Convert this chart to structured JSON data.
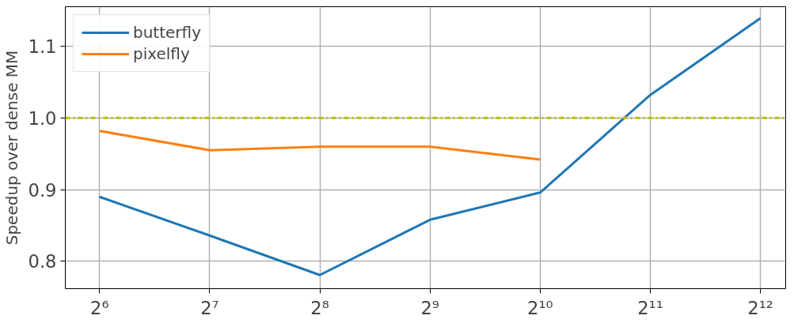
{
  "chart_data": {
    "type": "line",
    "ylabel": "Speedup over dense MM",
    "log": "x",
    "x": [
      64,
      128,
      256,
      512,
      1024,
      2048,
      4096
    ],
    "series": [
      {
        "name": "butterfly",
        "color": "#1f77b4",
        "values": [
          0.89,
          0.836,
          0.781,
          0.858,
          0.896,
          1.032,
          1.139
        ]
      },
      {
        "name": "pixelfly",
        "color": "#ff7f0e",
        "values": [
          0.982,
          0.955,
          0.96,
          0.96,
          0.942,
          null,
          null
        ]
      }
    ],
    "xlim": [
      51.6,
      4800
    ],
    "xticks": [
      {
        "value": 64,
        "label": "2⁶"
      },
      {
        "value": 128,
        "label": "2⁷"
      },
      {
        "value": 256,
        "label": "2⁸"
      },
      {
        "value": 512,
        "label": "2⁹"
      },
      {
        "value": 1024,
        "label": "2¹⁰"
      },
      {
        "value": 2048,
        "label": "2¹¹"
      },
      {
        "value": 4096,
        "label": "2¹²"
      }
    ],
    "ylim": [
      0.762,
      1.155
    ],
    "yticks": [
      0.8,
      0.9,
      {
        "value": 1.0,
        "label": "1.0"
      },
      1.1
    ],
    "ref_lines": [
      {
        "axis": "y",
        "value": 1.0,
        "color": "#bfbf00",
        "line_style": "dashdot"
      }
    ],
    "grid": true,
    "legend": "top left",
    "marker": "none",
    "line_style": "solid"
  }
}
